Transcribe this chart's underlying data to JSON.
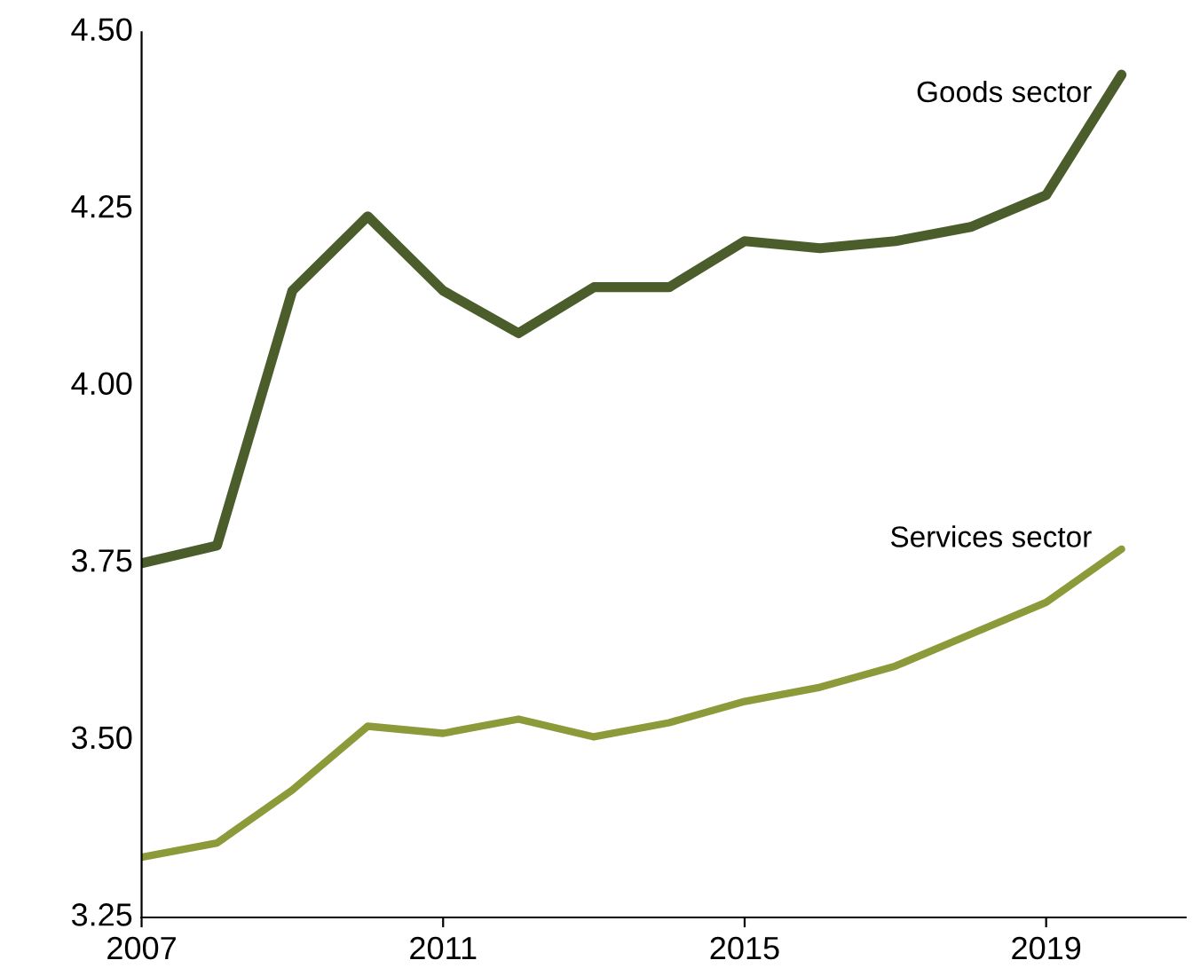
{
  "chart_data": {
    "type": "line",
    "x": [
      2007,
      2008,
      2009,
      2010,
      2011,
      2012,
      2013,
      2014,
      2015,
      2016,
      2017,
      2018,
      2019,
      2020
    ],
    "series": [
      {
        "name": "Goods sector",
        "color": "#4b5d2b",
        "values": [
          3.75,
          3.775,
          4.135,
          4.24,
          4.135,
          4.075,
          4.14,
          4.14,
          4.205,
          4.195,
          4.205,
          4.225,
          4.27,
          4.44
        ]
      },
      {
        "name": "Services sector",
        "color": "#8c9a3a",
        "values": [
          3.335,
          3.355,
          3.43,
          3.52,
          3.51,
          3.53,
          3.505,
          3.525,
          3.555,
          3.575,
          3.605,
          3.65,
          3.695,
          3.77
        ]
      }
    ],
    "xlim": [
      2007,
      2020.85
    ],
    "xticks": [
      2007,
      2011,
      2015,
      2019
    ],
    "ylim": [
      3.25,
      4.5
    ],
    "yticks": [
      {
        "value": 3.25,
        "label": "3.25"
      },
      {
        "value": 3.5,
        "label": "3.50"
      },
      {
        "value": 3.75,
        "label": "3.75"
      },
      {
        "value": 4.0,
        "label": "4.00"
      },
      {
        "value": 4.25,
        "label": "4.25"
      },
      {
        "value": 4.5,
        "label": "4.50"
      }
    ],
    "grid": false,
    "legend": false,
    "marker": "none",
    "line_style": "solid"
  }
}
